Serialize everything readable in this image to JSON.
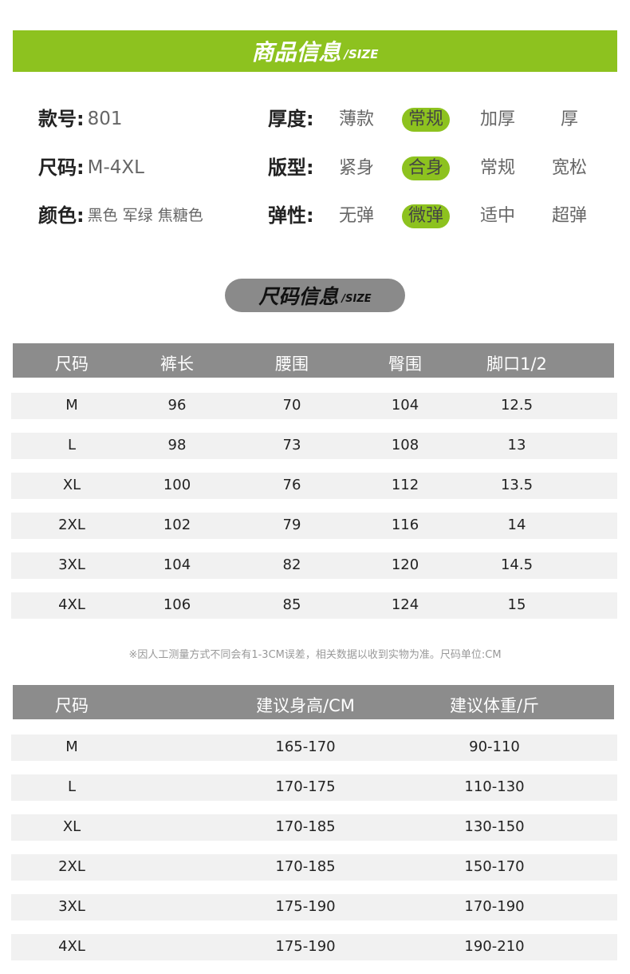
{
  "header": {
    "title": "商品信息",
    "subtitle": "/SIZE"
  },
  "info": {
    "left": [
      {
        "label": "款号:",
        "value": "801"
      },
      {
        "label": "尺码:",
        "value": "M-4XL"
      },
      {
        "label": "颜色:",
        "value": "黑色 军绿 焦糖色"
      }
    ],
    "right": [
      {
        "label": "厚度:",
        "options": [
          "薄款",
          "常规",
          "加厚",
          "厚"
        ],
        "selected": 1
      },
      {
        "label": "版型:",
        "options": [
          "紧身",
          "合身",
          "常规",
          "宽松"
        ],
        "selected": 1
      },
      {
        "label": "弹性:",
        "options": [
          "无弹",
          "微弹",
          "适中",
          "超弹"
        ],
        "selected": 1
      }
    ]
  },
  "section": {
    "title": "尺码信息",
    "subtitle": "/SIZE"
  },
  "table1": {
    "header": [
      "尺码",
      "裤长",
      "腰围",
      "臀围",
      "脚口1/2"
    ],
    "rows": [
      [
        "M",
        "96",
        "70",
        "104",
        "12.5"
      ],
      [
        "L",
        "98",
        "73",
        "108",
        "13"
      ],
      [
        "XL",
        "100",
        "76",
        "112",
        "13.5"
      ],
      [
        "2XL",
        "102",
        "79",
        "116",
        "14"
      ],
      [
        "3XL",
        "104",
        "82",
        "120",
        "14.5"
      ],
      [
        "4XL",
        "106",
        "85",
        "124",
        "15"
      ]
    ]
  },
  "note": "※因人工测量方式不同会有1-3CM误差，相关数据以收到实物为准。尺码单位:CM",
  "table2": {
    "header": [
      "尺码",
      "建议身高/CM",
      "建议体重/斤"
    ],
    "rows": [
      [
        "M",
        "165-170",
        "90-110"
      ],
      [
        "L",
        "170-175",
        "110-130"
      ],
      [
        "XL",
        "170-185",
        "130-150"
      ],
      [
        "2XL",
        "170-185",
        "150-170"
      ],
      [
        "3XL",
        "175-190",
        "170-190"
      ],
      [
        "4XL",
        "175-190",
        "190-210"
      ]
    ]
  }
}
